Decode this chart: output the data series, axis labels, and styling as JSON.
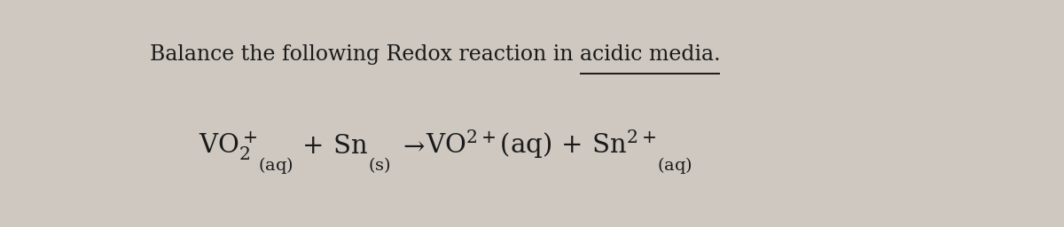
{
  "bg_color": "#cec8c0",
  "text_color": "#1a1a1a",
  "title_normal": "Balance the following Redox reaction in ",
  "title_underlined": "acidic media.",
  "title_fontsize": 17,
  "equation_fontsize": 21,
  "fig_width": 12.0,
  "fig_height": 2.56
}
